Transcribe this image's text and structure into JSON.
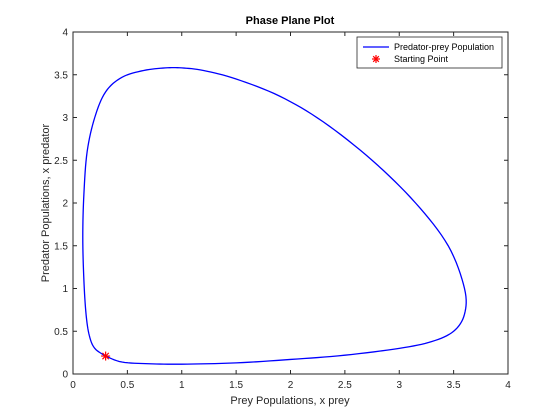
{
  "chart_data": {
    "type": "line",
    "title": "Phase Plane Plot",
    "xlabel": "Prey Populations, x prey",
    "ylabel": "Predator Populations,  x predator",
    "xlim": [
      0,
      4
    ],
    "ylim": [
      0,
      4
    ],
    "xticks": [
      "0",
      "0.5",
      "1",
      "1.5",
      "2",
      "2.5",
      "3",
      "3.5",
      "4"
    ],
    "yticks": [
      "0",
      "0.5",
      "1",
      "1.5",
      "2",
      "2.5",
      "3",
      "3.5",
      "4"
    ],
    "grid": false,
    "legend_position": "top-right",
    "series": [
      {
        "name": "Predator-prey Population",
        "color": "#0000ff",
        "x": [
          0.3,
          0.2,
          0.15,
          0.12,
          0.1,
          0.09,
          0.1,
          0.13,
          0.2,
          0.3,
          0.45,
          0.65,
          0.85,
          1.0,
          1.2,
          1.5,
          1.9,
          2.3,
          2.75,
          3.15,
          3.45,
          3.6,
          3.6,
          3.5,
          3.3,
          3.0,
          2.5,
          2.0,
          1.5,
          1.0,
          0.7,
          0.45,
          0.3
        ],
        "y": [
          0.21,
          0.3,
          0.45,
          0.7,
          1.1,
          1.6,
          2.1,
          2.6,
          3.0,
          3.3,
          3.47,
          3.55,
          3.58,
          3.58,
          3.55,
          3.45,
          3.25,
          2.95,
          2.5,
          2.0,
          1.5,
          1.0,
          0.7,
          0.5,
          0.38,
          0.3,
          0.22,
          0.17,
          0.13,
          0.115,
          0.12,
          0.14,
          0.21
        ]
      },
      {
        "name": "Starting Point",
        "color": "#ff0000",
        "marker": "asterisk",
        "x": [
          0.3
        ],
        "y": [
          0.21
        ]
      }
    ]
  }
}
